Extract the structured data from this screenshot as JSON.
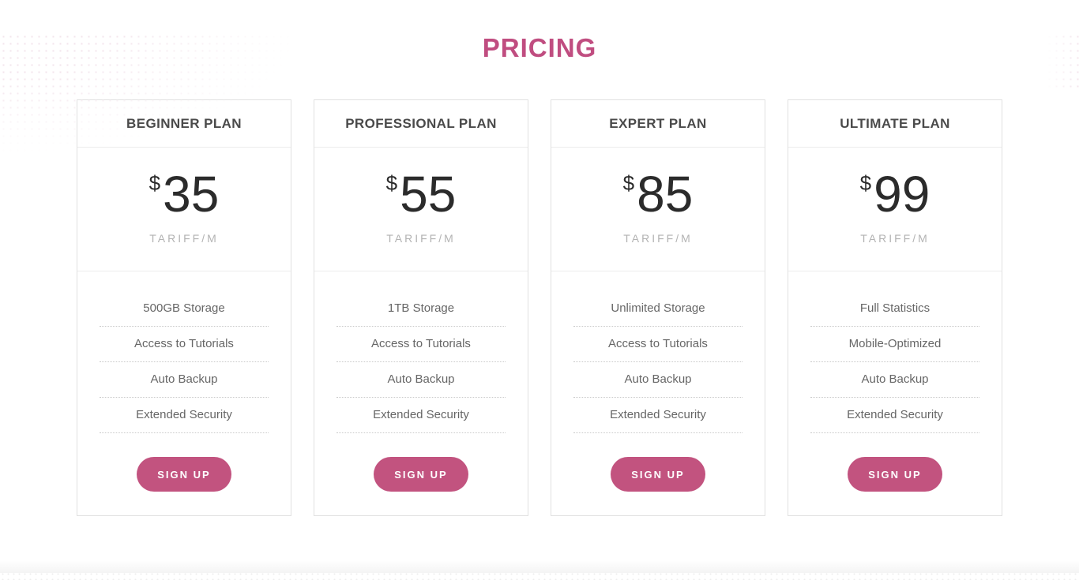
{
  "colors": {
    "accent": "#c04d80",
    "button": "#c2537f",
    "plan_title_text": "#4a4a4a",
    "price_text": "#2b2b2b",
    "feature_text": "#666666",
    "period_text": "#b3b3b3"
  },
  "header": {
    "title": "PRICING"
  },
  "plans": [
    {
      "name": "BEGINNER PLAN",
      "currency": "$",
      "price": "35",
      "period": "TARIFF/M",
      "features": [
        "500GB Storage",
        "Access to Tutorials",
        "Auto Backup",
        "Extended Security"
      ],
      "cta": "SIGN UP"
    },
    {
      "name": "PROFESSIONAL PLAN",
      "currency": "$",
      "price": "55",
      "period": "TARIFF/M",
      "features": [
        "1TB Storage",
        "Access to Tutorials",
        "Auto Backup",
        "Extended Security"
      ],
      "cta": "SIGN UP"
    },
    {
      "name": "EXPERT PLAN",
      "currency": "$",
      "price": "85",
      "period": "TARIFF/M",
      "features": [
        "Unlimited Storage",
        "Access to Tutorials",
        "Auto Backup",
        "Extended Security"
      ],
      "cta": "SIGN UP"
    },
    {
      "name": "ULTIMATE PLAN",
      "currency": "$",
      "price": "99",
      "period": "TARIFF/M",
      "features": [
        "Full Statistics",
        "Mobile-Optimized",
        "Auto Backup",
        "Extended Security"
      ],
      "cta": "SIGN UP"
    }
  ]
}
